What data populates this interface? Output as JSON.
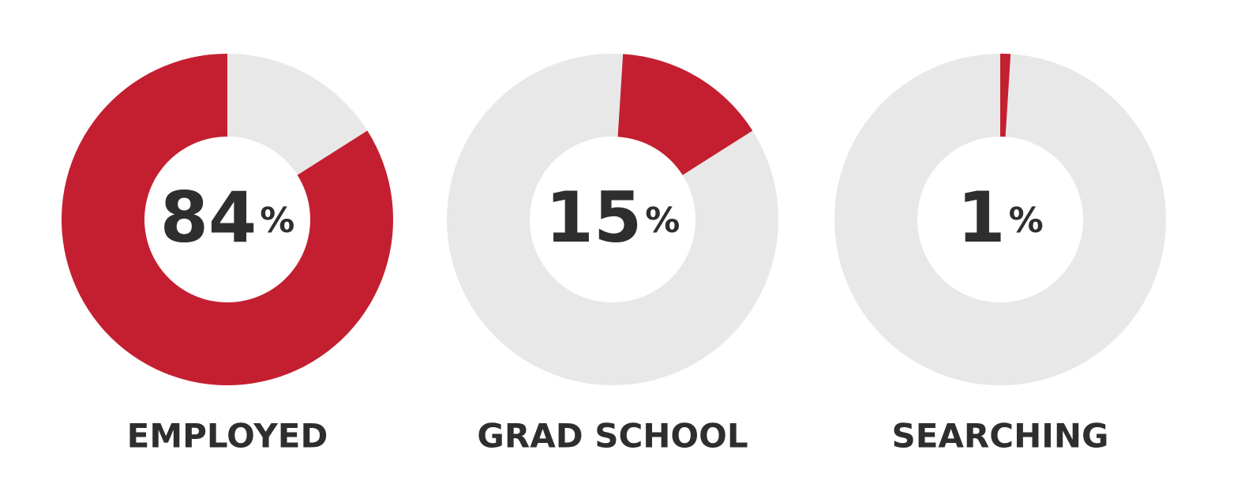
{
  "chart_data": [
    {
      "type": "donut",
      "title": "EMPLOYED",
      "values": [
        84
      ],
      "unit": "%",
      "color": "#c41f30",
      "track_color": "#e8e8e8"
    },
    {
      "type": "donut",
      "title": "GRAD SCHOOL",
      "values": [
        15
      ],
      "unit": "%",
      "color": "#c41f30",
      "track_color": "#e8e8e8"
    },
    {
      "type": "donut",
      "title": "SEARCHING",
      "values": [
        1
      ],
      "unit": "%",
      "color": "#c41f30",
      "track_color": "#e8e8e8"
    }
  ]
}
